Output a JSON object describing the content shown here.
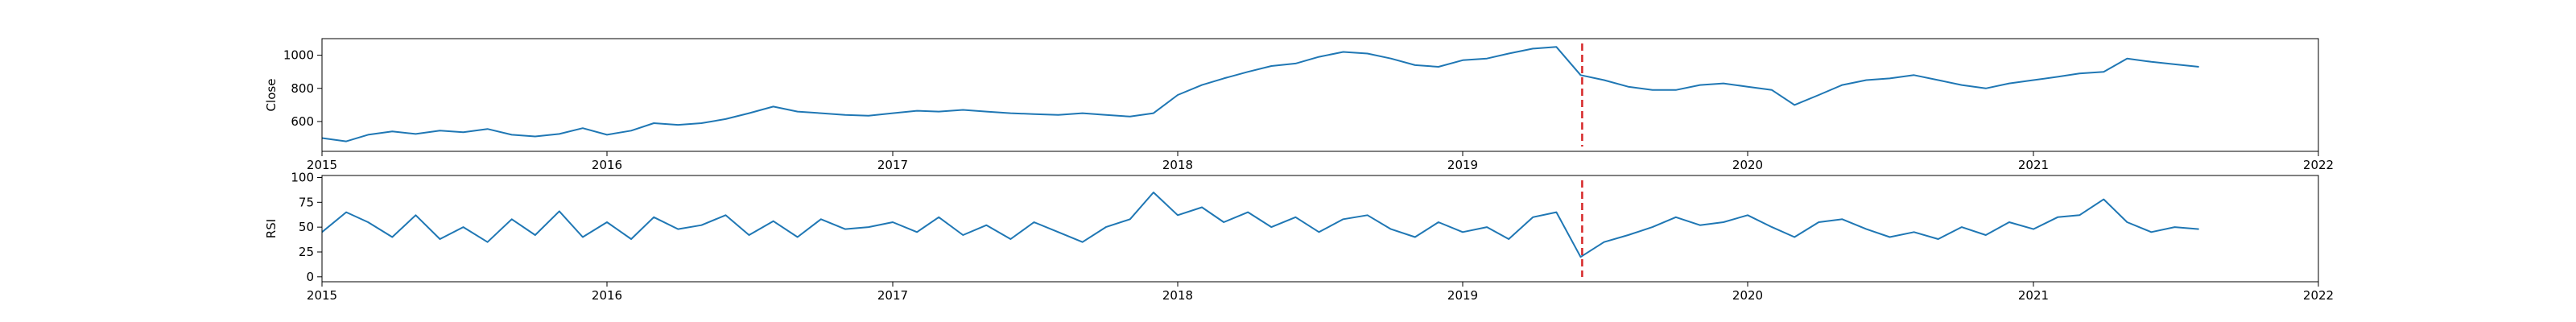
{
  "chart_data": [
    {
      "type": "line",
      "ylabel": "Close",
      "xlabel": "",
      "title": "",
      "xlim": [
        "2015-01-01",
        "2022-01-01"
      ],
      "ylim": [
        420,
        1100
      ],
      "x_ticks": [
        {
          "date": "2015-01-01",
          "label": "2015"
        },
        {
          "date": "2016-01-01",
          "label": "2016"
        },
        {
          "date": "2017-01-01",
          "label": "2017"
        },
        {
          "date": "2018-01-01",
          "label": "2018"
        },
        {
          "date": "2019-01-01",
          "label": "2019"
        },
        {
          "date": "2020-01-01",
          "label": "2020"
        },
        {
          "date": "2021-01-01",
          "label": "2021"
        },
        {
          "date": "2022-01-01",
          "label": "2022"
        }
      ],
      "y_ticks": [
        600,
        800,
        1000
      ],
      "line_color": "#1f77b4",
      "vline": {
        "date": "2019-06-03",
        "color": "#d62728",
        "style": "dashed"
      },
      "series": [
        {
          "x": [
            "2015-01-01",
            "2015-02-01",
            "2015-03-01",
            "2015-04-01",
            "2015-05-01",
            "2015-06-01",
            "2015-07-01",
            "2015-08-01",
            "2015-09-01",
            "2015-10-01",
            "2015-11-01",
            "2015-12-01",
            "2016-01-01",
            "2016-02-01",
            "2016-03-01",
            "2016-04-01",
            "2016-05-01",
            "2016-06-01",
            "2016-07-01",
            "2016-08-01",
            "2016-09-01",
            "2016-10-01",
            "2016-11-01",
            "2016-12-01",
            "2017-01-01",
            "2017-02-01",
            "2017-03-01",
            "2017-04-01",
            "2017-05-01",
            "2017-06-01",
            "2017-07-01",
            "2017-08-01",
            "2017-09-01",
            "2017-10-01",
            "2017-11-01",
            "2017-12-01",
            "2018-01-01",
            "2018-02-01",
            "2018-03-01",
            "2018-04-01",
            "2018-05-01",
            "2018-06-01",
            "2018-07-01",
            "2018-08-01",
            "2018-09-01",
            "2018-10-01",
            "2018-11-01",
            "2018-12-01",
            "2019-01-01",
            "2019-02-01",
            "2019-03-01",
            "2019-04-01",
            "2019-05-01",
            "2019-06-01",
            "2019-07-01",
            "2019-08-01",
            "2019-09-01",
            "2019-10-01",
            "2019-11-01",
            "2019-12-01",
            "2020-01-01",
            "2020-02-01",
            "2020-03-01",
            "2020-04-01",
            "2020-05-01",
            "2020-06-01",
            "2020-07-01",
            "2020-08-01",
            "2020-09-01",
            "2020-10-01",
            "2020-11-01",
            "2020-12-01",
            "2021-01-01",
            "2021-02-01",
            "2021-03-01",
            "2021-04-01",
            "2021-05-01",
            "2021-06-01",
            "2021-07-01",
            "2021-08-01"
          ],
          "values": [
            500,
            480,
            520,
            540,
            525,
            545,
            535,
            555,
            520,
            510,
            525,
            560,
            520,
            545,
            590,
            580,
            590,
            615,
            650,
            690,
            660,
            650,
            640,
            635,
            650,
            665,
            660,
            670,
            660,
            650,
            645,
            640,
            650,
            640,
            630,
            650,
            760,
            820,
            860,
            900,
            935,
            950,
            990,
            1020,
            1010,
            980,
            940,
            930,
            970,
            980,
            1010,
            1040,
            1050,
            880,
            850,
            810,
            790,
            790,
            820,
            830,
            810,
            790,
            700,
            760,
            820,
            850,
            860,
            880,
            850,
            820,
            800,
            830,
            850,
            870,
            890,
            900,
            980,
            960,
            945,
            930
          ]
        }
      ]
    },
    {
      "type": "line",
      "ylabel": "RSI",
      "xlabel": "",
      "title": "",
      "xlim": [
        "2015-01-01",
        "2022-01-01"
      ],
      "ylim": [
        -5,
        102
      ],
      "x_ticks": [
        {
          "date": "2015-01-01",
          "label": "2015"
        },
        {
          "date": "2016-01-01",
          "label": "2016"
        },
        {
          "date": "2017-01-01",
          "label": "2017"
        },
        {
          "date": "2018-01-01",
          "label": "2018"
        },
        {
          "date": "2019-01-01",
          "label": "2019"
        },
        {
          "date": "2020-01-01",
          "label": "2020"
        },
        {
          "date": "2021-01-01",
          "label": "2021"
        },
        {
          "date": "2022-01-01",
          "label": "2022"
        }
      ],
      "y_ticks": [
        0,
        25,
        50,
        75,
        100
      ],
      "line_color": "#1f77b4",
      "vline": {
        "date": "2019-06-03",
        "color": "#d62728",
        "style": "dashed"
      },
      "series": [
        {
          "x": [
            "2015-01-01",
            "2015-02-01",
            "2015-03-01",
            "2015-04-01",
            "2015-05-01",
            "2015-06-01",
            "2015-07-01",
            "2015-08-01",
            "2015-09-01",
            "2015-10-01",
            "2015-11-01",
            "2015-12-01",
            "2016-01-01",
            "2016-02-01",
            "2016-03-01",
            "2016-04-01",
            "2016-05-01",
            "2016-06-01",
            "2016-07-01",
            "2016-08-01",
            "2016-09-01",
            "2016-10-01",
            "2016-11-01",
            "2016-12-01",
            "2017-01-01",
            "2017-02-01",
            "2017-03-01",
            "2017-04-01",
            "2017-05-01",
            "2017-06-01",
            "2017-07-01",
            "2017-08-01",
            "2017-09-01",
            "2017-10-01",
            "2017-11-01",
            "2017-12-01",
            "2018-01-01",
            "2018-02-01",
            "2018-03-01",
            "2018-04-01",
            "2018-05-01",
            "2018-06-01",
            "2018-07-01",
            "2018-08-01",
            "2018-09-01",
            "2018-10-01",
            "2018-11-01",
            "2018-12-01",
            "2019-01-01",
            "2019-02-01",
            "2019-03-01",
            "2019-04-01",
            "2019-05-01",
            "2019-06-01",
            "2019-07-01",
            "2019-08-01",
            "2019-09-01",
            "2019-10-01",
            "2019-11-01",
            "2019-12-01",
            "2020-01-01",
            "2020-02-01",
            "2020-03-01",
            "2020-04-01",
            "2020-05-01",
            "2020-06-01",
            "2020-07-01",
            "2020-08-01",
            "2020-09-01",
            "2020-10-01",
            "2020-11-01",
            "2020-12-01",
            "2021-01-01",
            "2021-02-01",
            "2021-03-01",
            "2021-04-01",
            "2021-05-01",
            "2021-06-01",
            "2021-07-01",
            "2021-08-01"
          ],
          "values": [
            45,
            65,
            55,
            40,
            62,
            38,
            50,
            35,
            58,
            42,
            66,
            40,
            55,
            38,
            60,
            48,
            52,
            62,
            42,
            56,
            40,
            58,
            48,
            50,
            55,
            45,
            60,
            42,
            52,
            38,
            55,
            45,
            35,
            50,
            58,
            85,
            62,
            70,
            55,
            65,
            50,
            60,
            45,
            58,
            62,
            48,
            40,
            55,
            45,
            50,
            38,
            60,
            65,
            20,
            35,
            42,
            50,
            60,
            52,
            55,
            62,
            50,
            40,
            55,
            58,
            48,
            40,
            45,
            38,
            50,
            42,
            55,
            48,
            60,
            62,
            78,
            55,
            45,
            50,
            48
          ]
        }
      ]
    }
  ]
}
